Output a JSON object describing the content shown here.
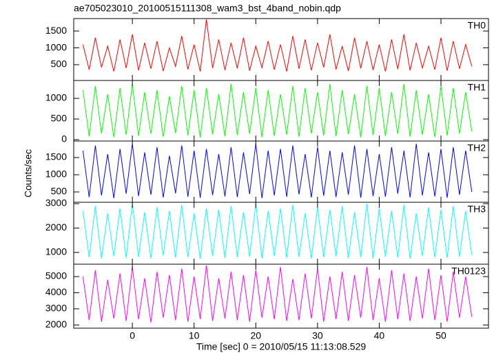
{
  "title": "ae705023010_20100515111308_wam3_bst_4band_nobin.qdp",
  "xlabel": "Time [sec] 0 = 2010/05/15 11:13:08.529",
  "ylabel": "Counts/sec",
  "chart_data": [
    {
      "type": "line",
      "xlim": [
        -9.5,
        57.7
      ],
      "xticks": [
        0,
        10,
        20,
        30,
        40,
        50
      ],
      "ylim": [
        30,
        1870
      ],
      "yticks": [
        500,
        1000,
        1500
      ],
      "x": [
        -8,
        -7,
        -6,
        -5,
        -4,
        -3,
        -2,
        -1,
        0,
        1,
        2,
        3,
        4,
        5,
        6,
        7,
        8,
        9,
        10,
        11,
        12,
        13,
        14,
        15,
        16,
        17,
        18,
        19,
        20,
        21,
        22,
        23,
        24,
        25,
        26,
        27,
        28,
        29,
        30,
        31,
        32,
        33,
        34,
        35,
        36,
        37,
        38,
        39,
        40,
        41,
        42,
        43,
        44,
        45,
        46,
        47,
        48,
        49,
        50,
        51,
        52,
        53,
        54,
        55
      ],
      "series": [
        {
          "name": "TH0",
          "color": "#ff0000",
          "values": [
            1100,
            350,
            1300,
            420,
            1050,
            300,
            1250,
            400,
            1400,
            330,
            1150,
            380,
            1200,
            310,
            1000,
            450,
            1350,
            360,
            1100,
            300,
            1850,
            400,
            1250,
            340,
            1150,
            390,
            1300,
            320,
            1050,
            410,
            1200,
            350,
            1100,
            300,
            1350,
            380,
            1250,
            330,
            1150,
            420,
            1400,
            360,
            1050,
            310,
            1300,
            390,
            1200,
            340,
            1100,
            300,
            1250,
            370,
            1400,
            330,
            1150,
            400,
            1050,
            350,
            1300,
            320,
            1200,
            380,
            1100,
            450
          ]
        }
      ]
    },
    {
      "type": "line",
      "xlim": [
        -9.5,
        57.7
      ],
      "xticks": [
        0,
        10,
        20,
        30,
        40,
        50
      ],
      "ylim": [
        -33,
        1433
      ],
      "yticks": [
        0,
        500,
        1000
      ],
      "x": [
        -8,
        -7,
        -6,
        -5,
        -4,
        -3,
        -2,
        -1,
        0,
        1,
        2,
        3,
        4,
        5,
        6,
        7,
        8,
        9,
        10,
        11,
        12,
        13,
        14,
        15,
        16,
        17,
        18,
        19,
        20,
        21,
        22,
        23,
        24,
        25,
        26,
        27,
        28,
        29,
        30,
        31,
        32,
        33,
        34,
        35,
        36,
        37,
        38,
        39,
        40,
        41,
        42,
        43,
        44,
        45,
        46,
        47,
        48,
        49,
        50,
        51,
        52,
        53,
        54,
        55
      ],
      "series": [
        {
          "name": "TH1",
          "color": "#00ff00",
          "values": [
            1200,
            80,
            1300,
            150,
            1100,
            60,
            1250,
            120,
            1350,
            90,
            1150,
            140,
            1200,
            70,
            1050,
            160,
            1300,
            100,
            1200,
            50,
            1250,
            130,
            1100,
            80,
            1350,
            110,
            1150,
            140,
            1250,
            60,
            1200,
            90,
            1100,
            120,
            1300,
            70,
            1250,
            150,
            1150,
            100,
            1350,
            80,
            1200,
            130,
            1100,
            60,
            1300,
            110,
            1250,
            90,
            1150,
            140,
            1350,
            70,
            1200,
            120,
            1100,
            60,
            1300,
            100,
            1250,
            150,
            1150,
            200
          ]
        }
      ]
    },
    {
      "type": "line",
      "xlim": [
        -9.5,
        57.7
      ],
      "xticks": [
        0,
        10,
        20,
        30,
        40,
        50
      ],
      "ylim": [
        200,
        1980
      ],
      "yticks": [
        500,
        1000,
        1500
      ],
      "x": [
        -8,
        -7,
        -6,
        -5,
        -4,
        -3,
        -2,
        -1,
        0,
        1,
        2,
        3,
        4,
        5,
        6,
        7,
        8,
        9,
        10,
        11,
        12,
        13,
        14,
        15,
        16,
        17,
        18,
        19,
        20,
        21,
        22,
        23,
        24,
        25,
        26,
        27,
        28,
        29,
        30,
        31,
        32,
        33,
        34,
        35,
        36,
        37,
        38,
        39,
        40,
        41,
        42,
        43,
        44,
        45,
        46,
        47,
        48,
        49,
        50,
        51,
        52,
        53,
        54,
        55
      ],
      "series": [
        {
          "name": "TH2",
          "color": "#0000ff",
          "values": [
            1700,
            350,
            1850,
            400,
            1600,
            320,
            1750,
            450,
            1900,
            380,
            1650,
            420,
            1800,
            340,
            1550,
            460,
            1850,
            360,
            1700,
            330,
            1750,
            410,
            1600,
            370,
            1800,
            350,
            1650,
            440,
            1900,
            320,
            1700,
            400,
            1750,
            360,
            1850,
            430,
            1600,
            340,
            1800,
            390,
            1700,
            350,
            1650,
            420,
            1850,
            330,
            1750,
            380,
            1600,
            360,
            1800,
            450,
            1700,
            340,
            1900,
            400,
            1650,
            370,
            1750,
            330,
            1800,
            420,
            1700,
            500
          ]
        }
      ]
    },
    {
      "type": "line",
      "xlim": [
        -9.5,
        57.7
      ],
      "xticks": [
        0,
        10,
        20,
        30,
        40,
        50
      ],
      "ylim": [
        520,
        3056
      ],
      "yticks": [
        1000,
        2000,
        3000
      ],
      "x": [
        -8,
        -7,
        -6,
        -5,
        -4,
        -3,
        -2,
        -1,
        0,
        1,
        2,
        3,
        4,
        5,
        6,
        7,
        8,
        9,
        10,
        11,
        12,
        13,
        14,
        15,
        16,
        17,
        18,
        19,
        20,
        21,
        22,
        23,
        24,
        25,
        26,
        27,
        28,
        29,
        30,
        31,
        32,
        33,
        34,
        35,
        36,
        37,
        38,
        39,
        40,
        41,
        42,
        43,
        44,
        45,
        46,
        47,
        48,
        49,
        50,
        51,
        52,
        53,
        54,
        55
      ],
      "series": [
        {
          "name": "TH3",
          "color": "#00ffff",
          "values": [
            2700,
            800,
            2900,
            750,
            2600,
            850,
            2800,
            780,
            3000,
            820,
            2650,
            760,
            2850,
            880,
            2700,
            790,
            2950,
            810,
            2600,
            740,
            2800,
            860,
            2750,
            770,
            2900,
            800,
            2650,
            830,
            3000,
            760,
            2700,
            850,
            2800,
            780,
            2950,
            820,
            2600,
            750,
            2850,
            800,
            2750,
            840,
            2900,
            770,
            2650,
            810,
            3000,
            760,
            2800,
            830,
            2700,
            790,
            2950,
            750,
            2600,
            860,
            2850,
            800,
            2750,
            780,
            2900,
            820,
            2700,
            900
          ]
        }
      ]
    },
    {
      "type": "line",
      "xlim": [
        -9.5,
        57.7
      ],
      "xticks": [
        0,
        10,
        20,
        30,
        40,
        50
      ],
      "ylim": [
        1800,
        5770
      ],
      "yticks": [
        2000,
        3000,
        4000,
        5000
      ],
      "x": [
        -8,
        -7,
        -6,
        -5,
        -4,
        -3,
        -2,
        -1,
        0,
        1,
        2,
        3,
        4,
        5,
        6,
        7,
        8,
        9,
        10,
        11,
        12,
        13,
        14,
        15,
        16,
        17,
        18,
        19,
        20,
        21,
        22,
        23,
        24,
        25,
        26,
        27,
        28,
        29,
        30,
        31,
        32,
        33,
        34,
        35,
        36,
        37,
        38,
        39,
        40,
        41,
        42,
        43,
        44,
        45,
        46,
        47,
        48,
        49,
        50,
        51,
        52,
        53,
        54,
        55
      ],
      "series": [
        {
          "name": "TH0123",
          "color": "#ff00ff",
          "values": [
            5000,
            2300,
            5400,
            2200,
            4800,
            2400,
            5200,
            2250,
            5600,
            2350,
            4900,
            2150,
            5300,
            2450,
            5100,
            2300,
            5500,
            2200,
            5000,
            2350,
            5700,
            2250,
            4900,
            2400,
            5300,
            2300,
            5100,
            2200,
            5400,
            2450,
            5000,
            2350,
            5600,
            2250,
            4850,
            2300,
            5200,
            2400,
            5500,
            2200,
            5000,
            2350,
            5300,
            2250,
            5100,
            2450,
            5600,
            2300,
            4900,
            2200,
            5400,
            2350,
            5200,
            2250,
            5000,
            2400,
            5500,
            2300,
            5100,
            2200,
            5300,
            2450,
            5000,
            2500
          ]
        }
      ]
    }
  ]
}
